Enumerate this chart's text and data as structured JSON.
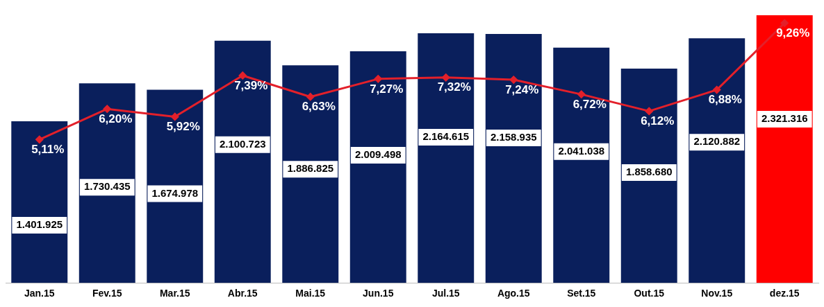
{
  "chart_data": {
    "type": "bar",
    "categories": [
      "Jan.15",
      "Fev.15",
      "Mar.15",
      "Abr.15",
      "Mai.15",
      "Jun.15",
      "Jul.15",
      "Ago.15",
      "Set.15",
      "Out.15",
      "Nov.15",
      "dez.15"
    ],
    "series": [
      {
        "colors": [
          "#0a1f5c",
          "#0a1f5c",
          "#0a1f5c",
          "#0a1f5c",
          "#0a1f5c",
          "#0a1f5c",
          "#0a1f5c",
          "#0a1f5c",
          "#0a1f5c",
          "#0a1f5c",
          "#0a1f5c",
          "#ff0000"
        ],
        "values": [
          1401925,
          1730435,
          1674978,
          2100723,
          1886825,
          2009498,
          2164615,
          2158935,
          2041038,
          1858680,
          2120882,
          2321316
        ],
        "value_labels": [
          "1.401.925",
          "1.730.435",
          "1.674.978",
          "2.100.723",
          "1.886.825",
          "2.009.498",
          "2.164.615",
          "2.158.935",
          "2.041.038",
          "1.858.680",
          "2.120.882",
          "2.321.316"
        ]
      },
      {
        "type": "line",
        "axis": "y2",
        "color": "#e3202a",
        "marker": "diamond",
        "values": [
          5.11,
          6.2,
          5.92,
          7.39,
          6.63,
          7.27,
          7.32,
          7.24,
          6.72,
          6.12,
          6.88,
          9.26
        ],
        "value_labels": [
          "5,11%",
          "6,20%",
          "5,92%",
          "7,39%",
          "6,63%",
          "7,27%",
          "7,32%",
          "7,24%",
          "6,72%",
          "6,12%",
          "6,88%",
          "9,26%"
        ]
      }
    ],
    "tick_labels": "x",
    "grid": false,
    "legend": false
  }
}
